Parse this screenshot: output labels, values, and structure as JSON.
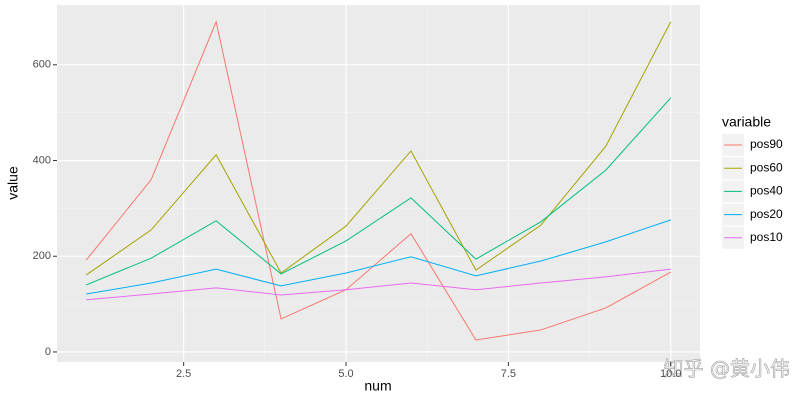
{
  "chart_data": {
    "type": "line",
    "x_label": "num",
    "y_label": "value",
    "legend_title": "variable",
    "x": [
      1,
      2,
      3,
      4,
      5,
      6,
      7,
      8,
      9,
      10
    ],
    "series": [
      {
        "name": "pos90",
        "color": "#F8766D",
        "values": [
          192,
          360,
          690,
          69,
          130,
          247,
          25,
          46,
          92,
          167
        ]
      },
      {
        "name": "pos60",
        "color": "#A3A500",
        "values": [
          161,
          255,
          412,
          165,
          263,
          420,
          171,
          265,
          430,
          690
        ]
      },
      {
        "name": "pos40",
        "color": "#00BF7D",
        "values": [
          140,
          196,
          274,
          163,
          232,
          322,
          194,
          272,
          380,
          531
        ]
      },
      {
        "name": "pos20",
        "color": "#00B0F6",
        "values": [
          121,
          144,
          173,
          138,
          165,
          199,
          159,
          190,
          230,
          276
        ]
      },
      {
        "name": "pos10",
        "color": "#E76BF3",
        "values": [
          109,
          121,
          134,
          119,
          130,
          144,
          130,
          144,
          157,
          173
        ]
      }
    ],
    "xlim": [
      0.55,
      10.45
    ],
    "ylim": [
      -21,
      725
    ],
    "xticks": [
      {
        "value": 2.5,
        "label": "2.5"
      },
      {
        "value": 5,
        "label": "5.0"
      },
      {
        "value": 7.5,
        "label": "7.5"
      },
      {
        "value": 10,
        "label": "10.0"
      }
    ],
    "yticks": [
      0,
      200,
      400,
      600
    ],
    "grid": true,
    "legend_position": "right",
    "watermark": "知乎 @黄小伟"
  }
}
